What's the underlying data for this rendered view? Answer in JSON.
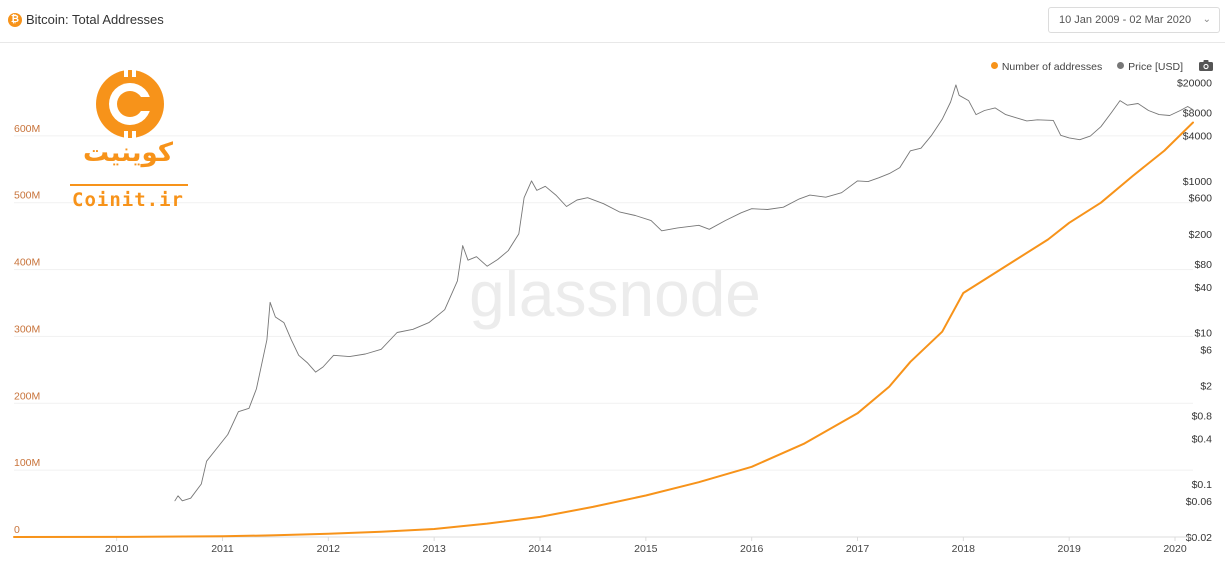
{
  "header": {
    "badge": "₿",
    "title": "Bitcoin: Total Addresses",
    "date_range": "10 Jan 2009 - 02 Mar 2020",
    "chevron_icon": "chevron-down-icon"
  },
  "legend": {
    "items": [
      {
        "label": "Number of addresses",
        "color": "#f7931a"
      },
      {
        "label": "Price [USD]",
        "color": "#777777"
      }
    ],
    "camera_icon": "camera-icon"
  },
  "logo": {
    "text_fa": "کوینیت",
    "text_en": "Coinit.ir",
    "color": "#f7931a"
  },
  "watermark": "glassnode",
  "chart_data": {
    "type": "line",
    "title": "Bitcoin: Total Addresses",
    "x_ticks": [
      "2010",
      "2011",
      "2012",
      "2013",
      "2014",
      "2015",
      "2016",
      "2017",
      "2018",
      "2019",
      "2020"
    ],
    "x_range": [
      2009.03,
      2020.17
    ],
    "y_left": {
      "label": "",
      "ticks": [
        "0",
        "100M",
        "200M",
        "300M",
        "400M",
        "500M",
        "600M"
      ],
      "range": [
        0,
        700
      ]
    },
    "y_right": {
      "label": "",
      "scale": "log",
      "ticks": [
        "$20000",
        "$8000",
        "$4000",
        "$1000",
        "$600",
        "$200",
        "$80",
        "$40",
        "$10",
        "$6",
        "$2",
        "$0.8",
        "$0.4",
        "$0.1",
        "$0.06",
        "$0.02"
      ],
      "range": [
        0.02,
        30000
      ]
    },
    "grid": true,
    "legend_position": "top-right",
    "series": [
      {
        "name": "Number of addresses",
        "axis": "left",
        "unit": "millions",
        "color": "#f7931a",
        "x": [
          2009.03,
          2010.0,
          2011.0,
          2011.5,
          2012.0,
          2012.5,
          2013.0,
          2013.5,
          2014.0,
          2014.5,
          2015.0,
          2015.5,
          2016.0,
          2016.5,
          2017.0,
          2017.3,
          2017.5,
          2017.8,
          2018.0,
          2018.2,
          2018.5,
          2018.8,
          2019.0,
          2019.3,
          2019.6,
          2019.9,
          2020.17
        ],
        "y": [
          0,
          0.2,
          1,
          2.5,
          5,
          8,
          12,
          20,
          30,
          45,
          62,
          82,
          105,
          140,
          185,
          225,
          262,
          307,
          365,
          385,
          415,
          445,
          470,
          500,
          540,
          578,
          620
        ]
      },
      {
        "name": "Price [USD]",
        "axis": "right",
        "color": "#777777",
        "x": [
          2010.55,
          2010.58,
          2010.62,
          2010.7,
          2010.8,
          2010.85,
          2010.95,
          2011.05,
          2011.15,
          2011.25,
          2011.32,
          2011.42,
          2011.45,
          2011.5,
          2011.58,
          2011.65,
          2011.72,
          2011.8,
          2011.88,
          2011.95,
          2012.05,
          2012.2,
          2012.35,
          2012.5,
          2012.65,
          2012.8,
          2012.95,
          2013.1,
          2013.22,
          2013.27,
          2013.32,
          2013.4,
          2013.5,
          2013.6,
          2013.7,
          2013.8,
          2013.85,
          2013.92,
          2013.97,
          2014.05,
          2014.15,
          2014.25,
          2014.35,
          2014.45,
          2014.6,
          2014.75,
          2014.9,
          2015.05,
          2015.15,
          2015.3,
          2015.5,
          2015.6,
          2015.75,
          2015.9,
          2016.0,
          2016.15,
          2016.3,
          2016.45,
          2016.55,
          2016.7,
          2016.85,
          2017.0,
          2017.1,
          2017.2,
          2017.3,
          2017.4,
          2017.5,
          2017.6,
          2017.7,
          2017.8,
          2017.88,
          2017.93,
          2017.96,
          2018.05,
          2018.12,
          2018.2,
          2018.3,
          2018.4,
          2018.5,
          2018.6,
          2018.7,
          2018.85,
          2018.92,
          2019.0,
          2019.1,
          2019.2,
          2019.3,
          2019.4,
          2019.48,
          2019.55,
          2019.65,
          2019.75,
          2019.85,
          2019.95,
          2020.05,
          2020.12,
          2020.17
        ],
        "y": [
          0.06,
          0.07,
          0.06,
          0.065,
          0.1,
          0.2,
          0.3,
          0.45,
          0.9,
          1.0,
          1.8,
          8,
          25,
          16,
          13.5,
          8,
          5,
          4,
          3.0,
          3.5,
          5,
          4.8,
          5.2,
          6,
          10,
          11,
          13.5,
          20,
          48,
          140,
          90,
          100,
          75,
          92,
          120,
          200,
          600,
          1000,
          750,
          850,
          650,
          460,
          560,
          600,
          500,
          390,
          350,
          300,
          220,
          240,
          260,
          230,
          300,
          380,
          430,
          420,
          450,
          580,
          650,
          610,
          700,
          1000,
          980,
          1100,
          1250,
          1500,
          2500,
          2700,
          4000,
          6500,
          11000,
          18500,
          13500,
          11500,
          7500,
          8500,
          9200,
          7500,
          6800,
          6200,
          6400,
          6300,
          4000,
          3700,
          3500,
          3900,
          5200,
          8000,
          11500,
          10000,
          10500,
          8500,
          7500,
          7300,
          8500,
          9600,
          8700
        ]
      }
    ]
  }
}
